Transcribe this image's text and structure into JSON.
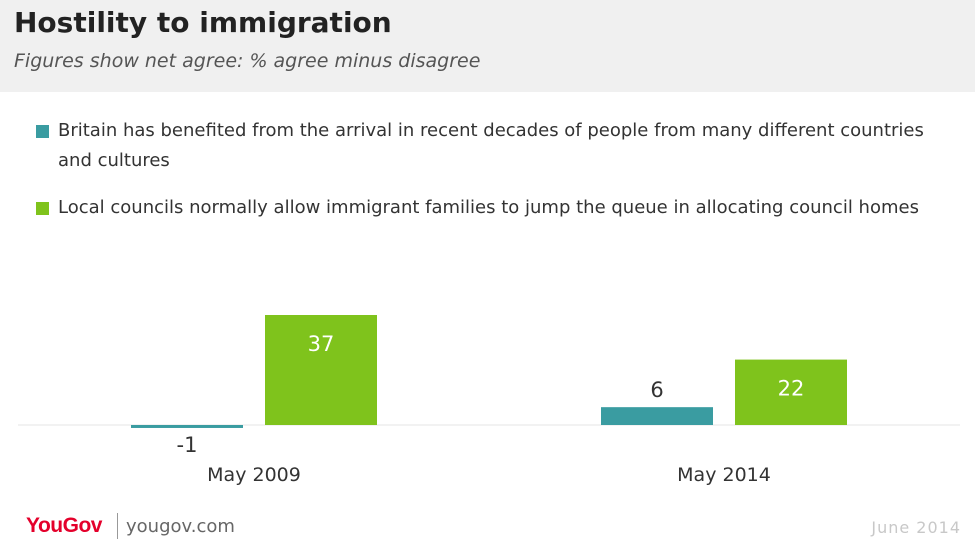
{
  "chart_data": {
    "type": "bar",
    "title": "Hostility to immigration",
    "subtitle": "Figures show net agree: % agree minus disagree",
    "categories": [
      "May 2009",
      "May 2014"
    ],
    "series": [
      {
        "name": "Britain has benefited from the arrival in recent decades of people from many different countries and cultures",
        "color": "#3a9ca1",
        "values": [
          -1,
          6
        ]
      },
      {
        "name": "Local councils normally allow immigrant families to jump the queue in allocating council homes",
        "color": "#7fc31c",
        "values": [
          37,
          22
        ]
      }
    ],
    "value_labels": [
      [
        "-1",
        "37"
      ],
      [
        "6",
        "22"
      ]
    ],
    "legend_position": "top",
    "grid": false
  },
  "footer": {
    "brand": "YouGov",
    "url": "yougov.com",
    "date": "June 2014"
  }
}
